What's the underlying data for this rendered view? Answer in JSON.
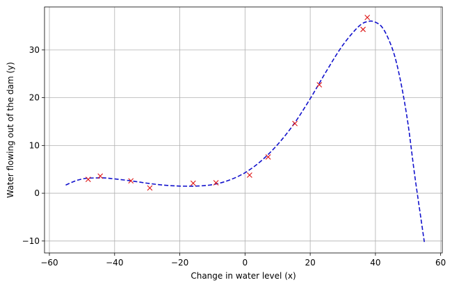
{
  "chart_data": {
    "type": "scatter",
    "title": "",
    "xlabel": "Change in water level (x)",
    "ylabel": "Water flowing out of the dam (y)",
    "xlim": [
      -61.5,
      60.5
    ],
    "ylim": [
      -12.5,
      39
    ],
    "xticks": [
      -60,
      -40,
      -20,
      0,
      20,
      40,
      60
    ],
    "yticks": [
      -10,
      0,
      10,
      20,
      30
    ],
    "xtick_labels": [
      "−60",
      "−40",
      "−20",
      "0",
      "20",
      "40",
      "60"
    ],
    "ytick_labels": [
      "−10",
      "0",
      "10",
      "20",
      "30"
    ],
    "grid": true,
    "legend": "none",
    "colors": {
      "points": "#dd1111",
      "curve": "#1111cc",
      "grid": "#b0b0b0"
    },
    "series": [
      {
        "kind": "scatter",
        "marker": "x",
        "x": [
          -48.1,
          -44.4,
          -35.0,
          -29.2,
          -15.9,
          -8.9,
          1.4,
          7.1,
          15.3,
          22.8,
          36.2,
          37.5
        ],
        "y": [
          2.9,
          3.6,
          2.6,
          1.1,
          2.1,
          2.2,
          3.8,
          7.6,
          14.6,
          22.7,
          34.3,
          36.8
        ]
      },
      {
        "kind": "line",
        "style": "dashed",
        "x": [
          -55,
          -52,
          -49,
          -46,
          -43,
          -40,
          -35,
          -30,
          -25,
          -20,
          -15,
          -10,
          -5,
          0,
          5,
          10,
          15,
          20,
          25,
          30,
          35,
          38,
          40,
          42,
          44,
          46,
          48,
          50,
          52,
          54,
          55
        ],
        "y": [
          1.7,
          2.6,
          3.1,
          3.2,
          3.2,
          3.0,
          2.6,
          2.1,
          1.7,
          1.5,
          1.5,
          1.8,
          2.7,
          4.3,
          6.8,
          10.2,
          14.5,
          19.8,
          25.6,
          31.0,
          35.0,
          36.0,
          35.8,
          34.8,
          32.3,
          28.5,
          22.5,
          14.5,
          4.0,
          -5.5,
          -10.2
        ]
      }
    ]
  }
}
